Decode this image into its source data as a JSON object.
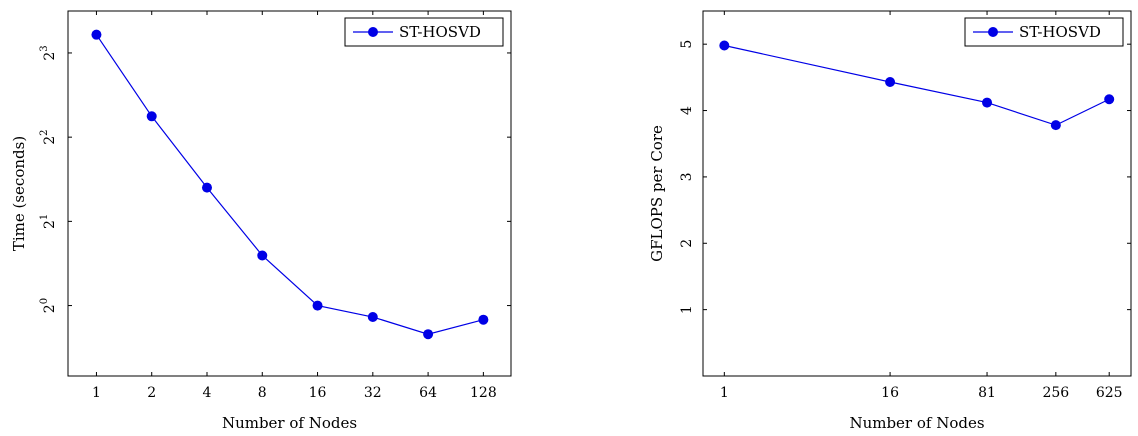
{
  "chart_data": [
    {
      "type": "line",
      "xlabel": "Number of Nodes",
      "ylabel": "Time (seconds)",
      "x_scale": "log2",
      "y_scale": "log2",
      "x": [
        1,
        2,
        4,
        8,
        16,
        32,
        64,
        128
      ],
      "xticks": [
        {
          "value": 1,
          "label": "1"
        },
        {
          "value": 2,
          "label": "2"
        },
        {
          "value": 4,
          "label": "4"
        },
        {
          "value": 8,
          "label": "8"
        },
        {
          "value": 16,
          "label": "16"
        },
        {
          "value": 32,
          "label": "32"
        },
        {
          "value": 64,
          "label": "64"
        },
        {
          "value": 128,
          "label": "128"
        }
      ],
      "yticks": [
        {
          "value": 1,
          "base": "2",
          "exp": "0"
        },
        {
          "value": 2,
          "base": "2",
          "exp": "1"
        },
        {
          "value": 4,
          "base": "2",
          "exp": "2"
        },
        {
          "value": 8,
          "base": "2",
          "exp": "3"
        }
      ],
      "xlim": [
        0.7,
        181
      ],
      "ylim": [
        0.56,
        11.3
      ],
      "series": [
        {
          "name": "ST-HOSVD",
          "color": "#0000e6",
          "marker": "circle",
          "values": [
            9.3,
            4.75,
            2.64,
            1.51,
            1.0,
            0.91,
            0.79,
            0.89
          ]
        }
      ],
      "legend": {
        "position": "top-right"
      },
      "grid": false
    },
    {
      "type": "line",
      "xlabel": "Number of Nodes",
      "ylabel": "GFLOPS per Core",
      "x_scale": "log",
      "y_scale": "linear",
      "x": [
        1,
        16,
        81,
        256,
        625
      ],
      "xticks": [
        {
          "value": 1,
          "label": "1"
        },
        {
          "value": 16,
          "label": "16"
        },
        {
          "value": 81,
          "label": "81"
        },
        {
          "value": 256,
          "label": "256"
        },
        {
          "value": 625,
          "label": "625"
        }
      ],
      "yticks": [
        {
          "value": 1,
          "label": "1"
        },
        {
          "value": 2,
          "label": "2"
        },
        {
          "value": 3,
          "label": "3"
        },
        {
          "value": 4,
          "label": "4"
        },
        {
          "value": 5,
          "label": "5"
        }
      ],
      "xlim": [
        0.7,
        900
      ],
      "ylim": [
        0,
        5.5
      ],
      "series": [
        {
          "name": "ST-HOSVD",
          "color": "#0000e6",
          "marker": "circle",
          "values": [
            4.98,
            4.43,
            4.12,
            3.78,
            4.17
          ]
        }
      ],
      "legend": {
        "position": "top-right"
      },
      "grid": false
    }
  ]
}
